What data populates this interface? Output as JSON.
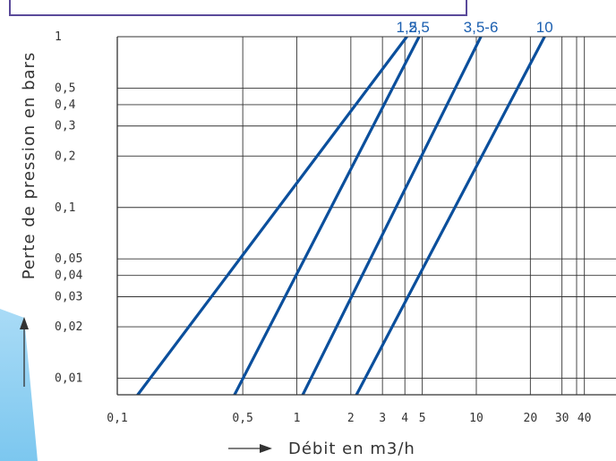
{
  "chart_data": {
    "type": "line",
    "xscale": "log",
    "yscale": "log",
    "xlabel": "Débit en m3/h",
    "ylabel": "Perte de pression en bars",
    "xlim": [
      0.1,
      60
    ],
    "ylim": [
      0.008,
      1
    ],
    "grid": true,
    "x_ticks": [
      {
        "v": 0.1,
        "label": "0,1"
      },
      {
        "v": 0.5,
        "label": "0,5"
      },
      {
        "v": 1,
        "label": "1"
      },
      {
        "v": 2,
        "label": "2"
      },
      {
        "v": 3,
        "label": "3"
      },
      {
        "v": 4,
        "label": "4"
      },
      {
        "v": 5,
        "label": "5"
      },
      {
        "v": 10,
        "label": "10"
      },
      {
        "v": 20,
        "label": "20"
      },
      {
        "v": 30,
        "label": "30"
      },
      {
        "v": 40,
        "label": "40"
      }
    ],
    "y_ticks": [
      {
        "v": 1,
        "label": "1"
      },
      {
        "v": 0.5,
        "label": "0,5"
      },
      {
        "v": 0.4,
        "label": "0,4"
      },
      {
        "v": 0.3,
        "label": "0,3"
      },
      {
        "v": 0.2,
        "label": "0,2"
      },
      {
        "v": 0.1,
        "label": "0,1"
      },
      {
        "v": 0.05,
        "label": "0,05"
      },
      {
        "v": 0.04,
        "label": "0,04"
      },
      {
        "v": 0.03,
        "label": "0,03"
      },
      {
        "v": 0.02,
        "label": "0,02"
      },
      {
        "v": 0.01,
        "label": "0,01"
      }
    ],
    "series": [
      {
        "name": "1,5",
        "points": [
          [
            0.13,
            0.008
          ],
          [
            4.1,
            1.0
          ]
        ]
      },
      {
        "name": "2,5",
        "points": [
          [
            0.45,
            0.008
          ],
          [
            4.8,
            1.0
          ]
        ]
      },
      {
        "name": "3,5-6",
        "points": [
          [
            1.08,
            0.008
          ],
          [
            10.6,
            1.0
          ]
        ]
      },
      {
        "name": "10",
        "points": [
          [
            2.15,
            0.008
          ],
          [
            24.0,
            1.0
          ]
        ]
      }
    ],
    "colors": {
      "series": "#0b4f9c",
      "label": "#1b5fb0",
      "grid": "#333333"
    }
  }
}
